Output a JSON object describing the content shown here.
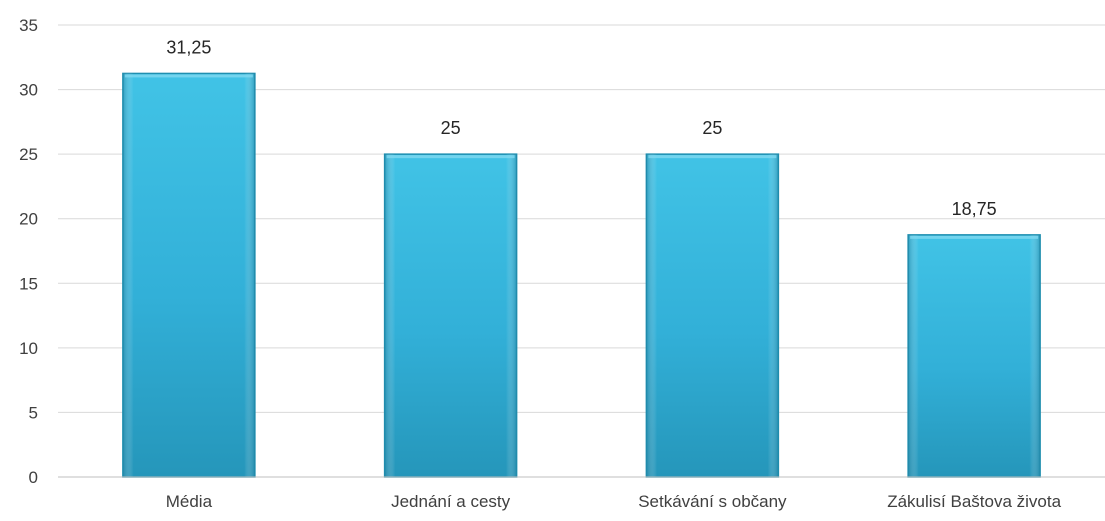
{
  "chart_data": {
    "type": "bar",
    "categories": [
      "Média",
      "Jednání a cesty",
      "Setkávání s občany",
      "Zákulisí Baštova života"
    ],
    "values": [
      31.25,
      25,
      25,
      18.75
    ],
    "data_labels": [
      "31,25",
      "25",
      "25",
      "18,75"
    ],
    "y_ticks": [
      "0",
      "5",
      "10",
      "15",
      "20",
      "25",
      "30",
      "35"
    ],
    "ylim": [
      0,
      35
    ],
    "grid": true,
    "legend": "none",
    "bar_color": "#33b5dc",
    "bar_color_dark": "#1f8fb0",
    "title": "",
    "xlabel": "",
    "ylabel": ""
  }
}
